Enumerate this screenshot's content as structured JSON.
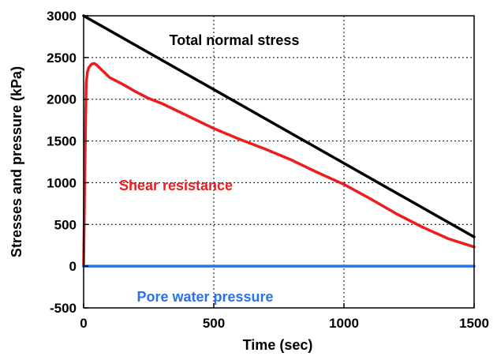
{
  "chart_data": {
    "type": "line",
    "xlabel": "Time (sec)",
    "ylabel": "Stresses and pressure (kPa)",
    "xlim": [
      0,
      1500
    ],
    "ylim": [
      -500,
      3000
    ],
    "x_ticks": [
      "0",
      "500",
      "1000",
      "1500"
    ],
    "y_ticks": [
      "-500",
      "0",
      "500",
      "1000",
      "1500",
      "2000",
      "2500",
      "3000"
    ],
    "grid": true,
    "legend": "none",
    "series": [
      {
        "name": "Total normal stress",
        "color": "#000000",
        "x": [
          0,
          1500
        ],
        "y": [
          3000,
          350
        ]
      },
      {
        "name": "Shear resistance",
        "color": "#ee1c1c",
        "x": [
          0,
          5,
          10,
          15,
          20,
          25,
          30,
          40,
          50,
          60,
          80,
          100,
          150,
          200,
          250,
          300,
          400,
          500,
          600,
          700,
          800,
          900,
          1000,
          1100,
          1200,
          1300,
          1400,
          1450,
          1500
        ],
        "y": [
          0,
          1200,
          2200,
          2330,
          2380,
          2400,
          2420,
          2430,
          2410,
          2380,
          2320,
          2260,
          2180,
          2090,
          2010,
          1950,
          1800,
          1650,
          1520,
          1400,
          1270,
          1120,
          980,
          810,
          630,
          470,
          330,
          280,
          230
        ]
      },
      {
        "name": "Pore water pressure",
        "color": "#2a72e8",
        "x": [
          0,
          10,
          1500
        ],
        "y": [
          0,
          0,
          0
        ]
      }
    ]
  }
}
